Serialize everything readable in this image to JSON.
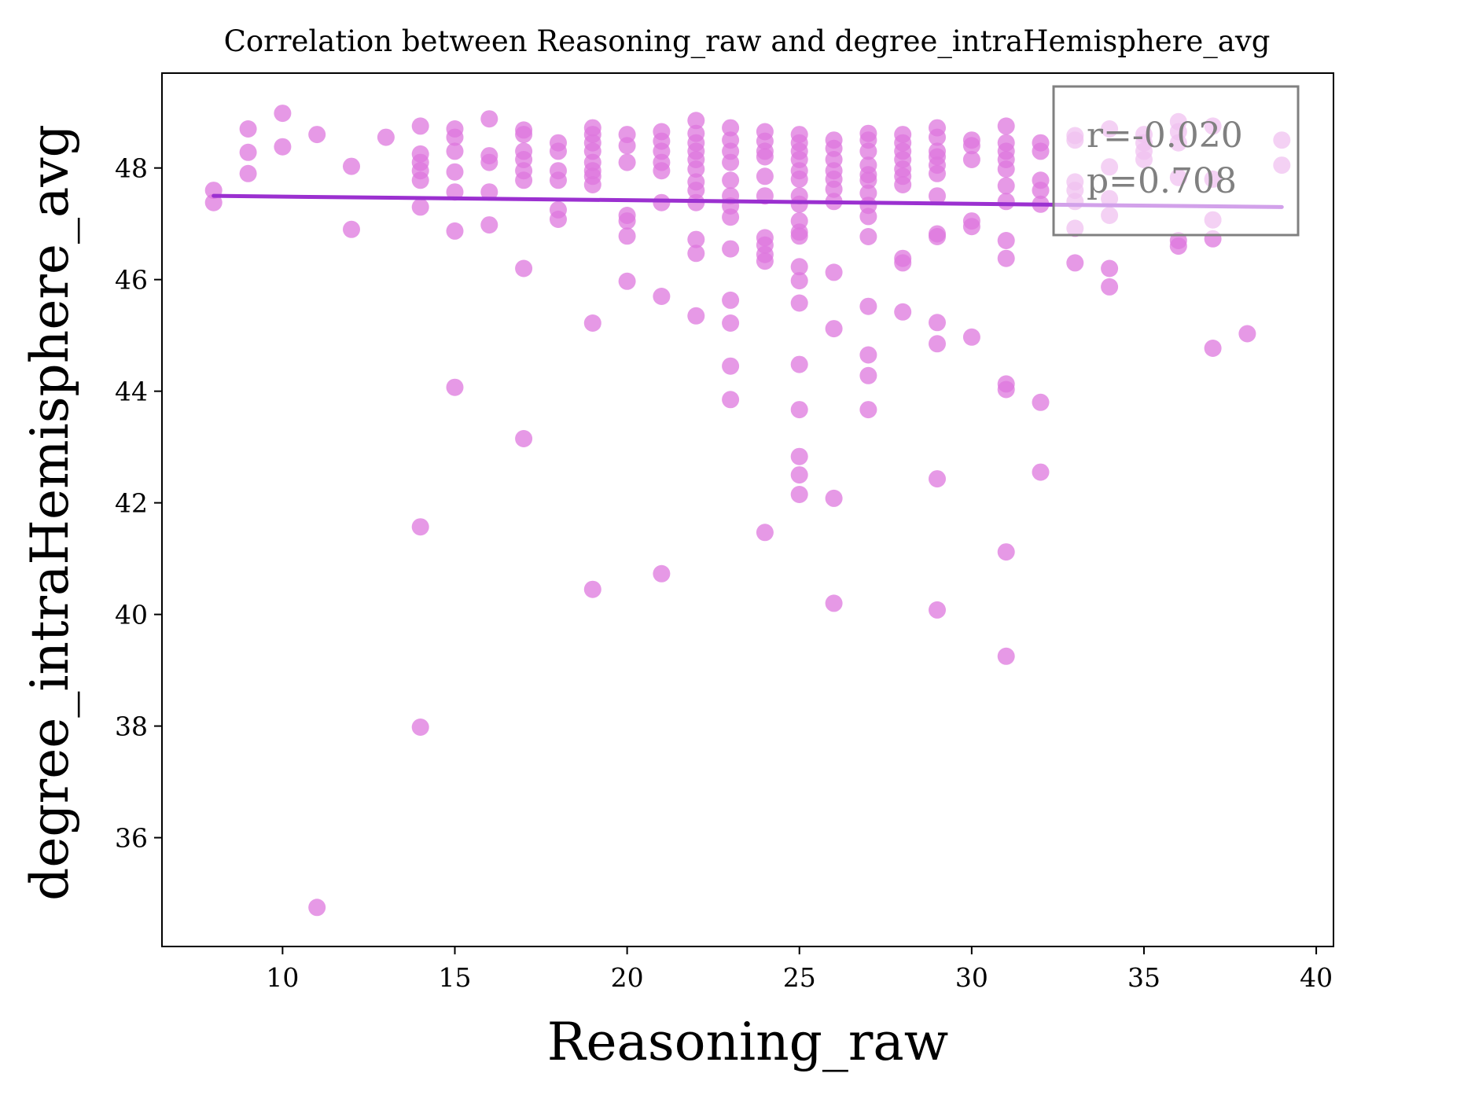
{
  "chart_data": {
    "type": "scatter",
    "title": "Correlation between Reasoning_raw and degree_intraHemisphere_avg",
    "xlabel": "Reasoning_raw",
    "ylabel": "degree_intraHemisphere_avg",
    "xlim": [
      6.5,
      40.5
    ],
    "ylim": [
      34.05,
      49.7
    ],
    "xticks": [
      10,
      15,
      20,
      25,
      30,
      35,
      40
    ],
    "yticks": [
      36,
      38,
      40,
      42,
      44,
      46,
      48
    ],
    "xtick_labels": [
      "10",
      "15",
      "20",
      "25",
      "30",
      "35",
      "40"
    ],
    "ytick_labels": [
      "36",
      "38",
      "40",
      "42",
      "44",
      "46",
      "48"
    ],
    "grid": false,
    "point_color": "#dd77dd",
    "line_color": "#9b30d0",
    "annotation_box": {
      "lines": [
        "r=-0.020",
        "p=0.708"
      ],
      "placement": "top-right"
    },
    "regression": {
      "x": [
        8,
        39
      ],
      "y": [
        47.5,
        47.3
      ]
    },
    "series": [
      {
        "points": [
          [
            8,
            47.6
          ],
          [
            8,
            47.38
          ],
          [
            9,
            48.7
          ],
          [
            9,
            48.28
          ],
          [
            9,
            47.9
          ],
          [
            10,
            48.98
          ],
          [
            10,
            48.38
          ],
          [
            11,
            48.6
          ],
          [
            11,
            34.75
          ],
          [
            12,
            48.03
          ],
          [
            12,
            46.9
          ],
          [
            13,
            48.55
          ],
          [
            14,
            48.75
          ],
          [
            14,
            48.25
          ],
          [
            14,
            48.1
          ],
          [
            14,
            47.95
          ],
          [
            14,
            47.78
          ],
          [
            14,
            47.3
          ],
          [
            14,
            41.57
          ],
          [
            14,
            37.98
          ],
          [
            15,
            48.7
          ],
          [
            15,
            48.55
          ],
          [
            15,
            48.3
          ],
          [
            15,
            47.93
          ],
          [
            15,
            47.57
          ],
          [
            15,
            46.87
          ],
          [
            15,
            44.07
          ],
          [
            16,
            48.88
          ],
          [
            16,
            48.22
          ],
          [
            16,
            48.1
          ],
          [
            16,
            47.57
          ],
          [
            16,
            46.98
          ],
          [
            17,
            48.68
          ],
          [
            17,
            48.6
          ],
          [
            17,
            48.3
          ],
          [
            17,
            48.15
          ],
          [
            17,
            47.95
          ],
          [
            17,
            47.78
          ],
          [
            17,
            46.2
          ],
          [
            17,
            43.15
          ],
          [
            18,
            48.45
          ],
          [
            18,
            48.3
          ],
          [
            18,
            47.95
          ],
          [
            18,
            47.78
          ],
          [
            18,
            47.25
          ],
          [
            18,
            47.08
          ],
          [
            19,
            48.72
          ],
          [
            19,
            48.6
          ],
          [
            19,
            48.45
          ],
          [
            19,
            48.3
          ],
          [
            19,
            48.1
          ],
          [
            19,
            47.95
          ],
          [
            19,
            47.85
          ],
          [
            19,
            47.7
          ],
          [
            19,
            45.22
          ],
          [
            19,
            40.45
          ],
          [
            20,
            48.6
          ],
          [
            20,
            48.4
          ],
          [
            20,
            48.1
          ],
          [
            20,
            47.15
          ],
          [
            20,
            47.05
          ],
          [
            20,
            46.78
          ],
          [
            20,
            45.97
          ],
          [
            21,
            48.65
          ],
          [
            21,
            48.48
          ],
          [
            21,
            48.3
          ],
          [
            21,
            48.1
          ],
          [
            21,
            47.95
          ],
          [
            21,
            47.38
          ],
          [
            21,
            45.7
          ],
          [
            21,
            40.73
          ],
          [
            22,
            48.85
          ],
          [
            22,
            48.62
          ],
          [
            22,
            48.45
          ],
          [
            22,
            48.3
          ],
          [
            22,
            48.15
          ],
          [
            22,
            47.98
          ],
          [
            22,
            47.75
          ],
          [
            22,
            47.6
          ],
          [
            22,
            47.38
          ],
          [
            22,
            46.72
          ],
          [
            22,
            46.47
          ],
          [
            22,
            45.35
          ],
          [
            23,
            48.72
          ],
          [
            23,
            48.5
          ],
          [
            23,
            48.3
          ],
          [
            23,
            48.1
          ],
          [
            23,
            47.78
          ],
          [
            23,
            47.5
          ],
          [
            23,
            47.32
          ],
          [
            23,
            47.12
          ],
          [
            23,
            46.55
          ],
          [
            23,
            45.63
          ],
          [
            23,
            45.22
          ],
          [
            23,
            44.45
          ],
          [
            23,
            43.85
          ],
          [
            24,
            48.65
          ],
          [
            24,
            48.48
          ],
          [
            24,
            48.3
          ],
          [
            24,
            48.2
          ],
          [
            24,
            47.85
          ],
          [
            24,
            47.5
          ],
          [
            24,
            46.75
          ],
          [
            24,
            46.62
          ],
          [
            24,
            46.45
          ],
          [
            24,
            46.33
          ],
          [
            24,
            41.47
          ],
          [
            25,
            48.6
          ],
          [
            25,
            48.45
          ],
          [
            25,
            48.3
          ],
          [
            25,
            48.15
          ],
          [
            25,
            47.95
          ],
          [
            25,
            47.8
          ],
          [
            25,
            47.5
          ],
          [
            25,
            47.35
          ],
          [
            25,
            47.05
          ],
          [
            25,
            46.85
          ],
          [
            25,
            46.78
          ],
          [
            25,
            46.23
          ],
          [
            25,
            45.98
          ],
          [
            25,
            45.58
          ],
          [
            25,
            44.48
          ],
          [
            25,
            43.67
          ],
          [
            25,
            42.83
          ],
          [
            25,
            42.5
          ],
          [
            25,
            42.15
          ],
          [
            26,
            48.5
          ],
          [
            26,
            48.35
          ],
          [
            26,
            48.15
          ],
          [
            26,
            47.95
          ],
          [
            26,
            47.8
          ],
          [
            26,
            47.62
          ],
          [
            26,
            47.4
          ],
          [
            26,
            46.13
          ],
          [
            26,
            45.12
          ],
          [
            26,
            42.08
          ],
          [
            26,
            40.2
          ],
          [
            27,
            48.62
          ],
          [
            27,
            48.5
          ],
          [
            27,
            48.3
          ],
          [
            27,
            48.05
          ],
          [
            27,
            47.88
          ],
          [
            27,
            47.78
          ],
          [
            27,
            47.55
          ],
          [
            27,
            47.33
          ],
          [
            27,
            47.13
          ],
          [
            27,
            46.77
          ],
          [
            27,
            45.52
          ],
          [
            27,
            44.65
          ],
          [
            27,
            44.28
          ],
          [
            27,
            43.67
          ],
          [
            28,
            48.6
          ],
          [
            28,
            48.45
          ],
          [
            28,
            48.3
          ],
          [
            28,
            48.15
          ],
          [
            28,
            47.98
          ],
          [
            28,
            47.85
          ],
          [
            28,
            47.7
          ],
          [
            28,
            46.38
          ],
          [
            28,
            46.3
          ],
          [
            28,
            45.42
          ],
          [
            29,
            48.72
          ],
          [
            29,
            48.55
          ],
          [
            29,
            48.3
          ],
          [
            29,
            48.2
          ],
          [
            29,
            48.05
          ],
          [
            29,
            47.9
          ],
          [
            29,
            47.5
          ],
          [
            29,
            46.82
          ],
          [
            29,
            46.77
          ],
          [
            29,
            45.23
          ],
          [
            29,
            44.85
          ],
          [
            29,
            42.43
          ],
          [
            29,
            40.08
          ],
          [
            30,
            48.5
          ],
          [
            30,
            48.4
          ],
          [
            30,
            48.15
          ],
          [
            30,
            47.05
          ],
          [
            30,
            46.95
          ],
          [
            30,
            44.97
          ],
          [
            31,
            48.75
          ],
          [
            31,
            48.45
          ],
          [
            31,
            48.3
          ],
          [
            31,
            48.15
          ],
          [
            31,
            47.98
          ],
          [
            31,
            47.68
          ],
          [
            31,
            47.4
          ],
          [
            31,
            46.7
          ],
          [
            31,
            46.38
          ],
          [
            31,
            44.13
          ],
          [
            31,
            44.03
          ],
          [
            31,
            41.12
          ],
          [
            31,
            39.25
          ],
          [
            32,
            48.45
          ],
          [
            32,
            48.3
          ],
          [
            32,
            47.78
          ],
          [
            32,
            47.6
          ],
          [
            32,
            47.35
          ],
          [
            32,
            43.8
          ],
          [
            32,
            42.55
          ],
          [
            33,
            48.58
          ],
          [
            33,
            48.5
          ],
          [
            33,
            47.75
          ],
          [
            33,
            47.6
          ],
          [
            33,
            47.4
          ],
          [
            33,
            46.92
          ],
          [
            33,
            46.3
          ],
          [
            34,
            48.7
          ],
          [
            34,
            48.02
          ],
          [
            34,
            47.45
          ],
          [
            34,
            47.15
          ],
          [
            34,
            46.2
          ],
          [
            34,
            45.87
          ],
          [
            35,
            48.6
          ],
          [
            35,
            48.45
          ],
          [
            35,
            48.3
          ],
          [
            35,
            48.15
          ],
          [
            36,
            48.83
          ],
          [
            36,
            48.65
          ],
          [
            36,
            48.45
          ],
          [
            36,
            47.83
          ],
          [
            36,
            46.7
          ],
          [
            36,
            46.6
          ],
          [
            37,
            48.75
          ],
          [
            37,
            47.8
          ],
          [
            37,
            47.07
          ],
          [
            37,
            46.73
          ],
          [
            37,
            44.77
          ],
          [
            38,
            45.03
          ],
          [
            39,
            48.5
          ],
          [
            39,
            48.05
          ]
        ]
      }
    ]
  }
}
